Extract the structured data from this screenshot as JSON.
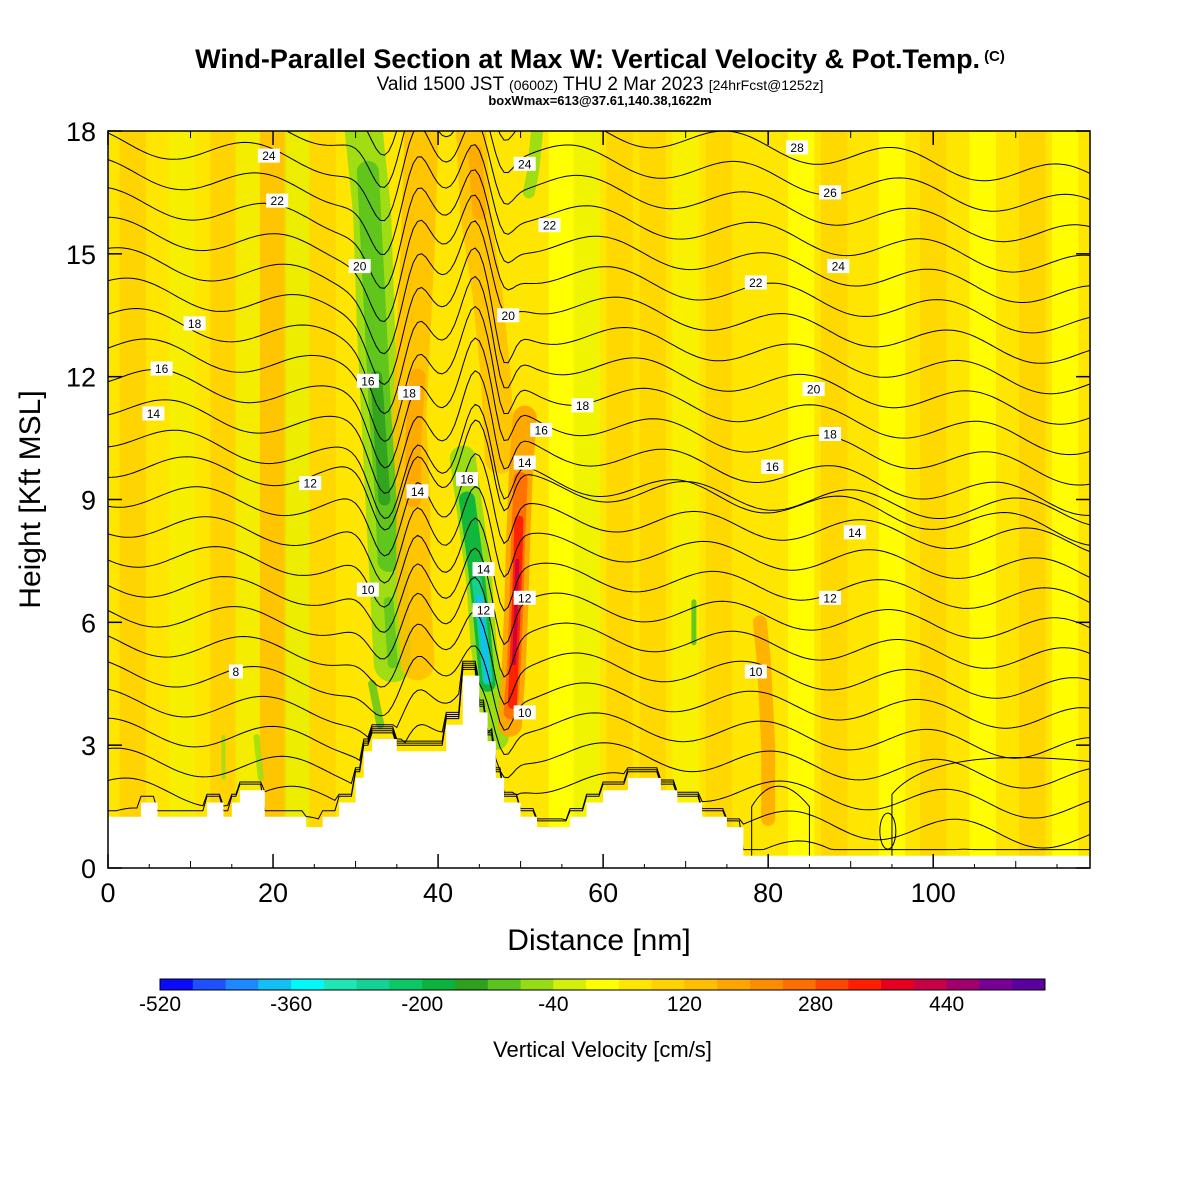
{
  "chart_data": {
    "type": "heatmap",
    "title": "Wind-Parallel Section at Max W: Vertical Velocity & Pot.Temp.",
    "title_mark": "(C)",
    "subtitle_main": "Valid 1500 JST",
    "subtitle_utc": "(0600Z)",
    "subtitle_date": "THU 2 Mar 2023",
    "subtitle_fcst": "[24hrFcst@1252z]",
    "subtitle2": "boxWmax=613@37.61,140.38,1622m",
    "xlabel": "Distance [nm]",
    "ylabel": "Height [Kft MSL]",
    "xlim": [
      0,
      119
    ],
    "ylim": [
      0,
      18
    ],
    "xticks": [
      "0",
      "20",
      "40",
      "60",
      "80",
      "100"
    ],
    "yticks": [
      "0",
      "3",
      "6",
      "9",
      "12",
      "15",
      "18"
    ],
    "colorbar": {
      "label": "Vertical Velocity [cm/s]",
      "tick_labels": [
        "-520",
        "-360",
        "-200",
        "-40",
        "120",
        "280",
        "440"
      ],
      "colors": [
        "#0a0aff",
        "#1e50ff",
        "#1e88ff",
        "#12c0f5",
        "#00fafa",
        "#1ee6b4",
        "#14d296",
        "#0ac864",
        "#0ab43c",
        "#2da01e",
        "#5ac31e",
        "#96dc14",
        "#d2f00a",
        "#ffff00",
        "#ffe600",
        "#ffd200",
        "#ffbe00",
        "#ffa500",
        "#ff8c00",
        "#ff6e00",
        "#ff4600",
        "#ff1e00",
        "#e6001e",
        "#c80046",
        "#a0006e",
        "#780096",
        "#5a00a0"
      ]
    },
    "terrain_kft": [
      [
        0,
        1.25
      ],
      [
        4,
        1.25
      ],
      [
        4,
        1.6
      ],
      [
        6,
        1.6
      ],
      [
        6,
        1.25
      ],
      [
        12,
        1.25
      ],
      [
        12,
        1.6
      ],
      [
        14,
        1.6
      ],
      [
        14,
        1.25
      ],
      [
        15,
        1.25
      ],
      [
        15,
        1.6
      ],
      [
        16,
        1.6
      ],
      [
        16,
        1.9
      ],
      [
        19,
        1.9
      ],
      [
        19,
        1.25
      ],
      [
        24,
        1.25
      ],
      [
        24,
        1.0
      ],
      [
        26,
        1.0
      ],
      [
        26,
        1.25
      ],
      [
        28,
        1.25
      ],
      [
        28,
        1.6
      ],
      [
        30,
        1.6
      ],
      [
        30,
        2.2
      ],
      [
        31,
        2.2
      ],
      [
        31,
        2.85
      ],
      [
        32,
        2.85
      ],
      [
        32,
        3.15
      ],
      [
        35,
        3.15
      ],
      [
        35,
        2.85
      ],
      [
        41,
        2.85
      ],
      [
        41,
        3.5
      ],
      [
        43,
        3.5
      ],
      [
        43,
        4.7
      ],
      [
        45,
        4.7
      ],
      [
        45,
        3.8
      ],
      [
        46,
        3.8
      ],
      [
        46,
        3.1
      ],
      [
        47,
        3.1
      ],
      [
        47,
        2.2
      ],
      [
        48,
        2.2
      ],
      [
        48,
        1.6
      ],
      [
        50,
        1.6
      ],
      [
        50,
        1.25
      ],
      [
        52,
        1.25
      ],
      [
        52,
        1.0
      ],
      [
        56,
        1.0
      ],
      [
        56,
        1.25
      ],
      [
        58,
        1.25
      ],
      [
        58,
        1.6
      ],
      [
        60,
        1.6
      ],
      [
        60,
        1.9
      ],
      [
        63,
        1.9
      ],
      [
        63,
        2.2
      ],
      [
        67,
        2.2
      ],
      [
        67,
        1.9
      ],
      [
        69,
        1.9
      ],
      [
        69,
        1.6
      ],
      [
        72,
        1.6
      ],
      [
        72,
        1.25
      ],
      [
        75,
        1.25
      ],
      [
        75,
        1.0
      ],
      [
        77,
        1.0
      ],
      [
        77,
        0.3
      ],
      [
        119,
        0.3
      ]
    ],
    "w_features": [
      {
        "x": 33,
        "y": 9.0,
        "w": -220,
        "label": "downdraft"
      },
      {
        "x": 45.5,
        "y": 5.5,
        "w": -420,
        "label": "downdraft"
      },
      {
        "x": 49.5,
        "y": 7.0,
        "w": 440,
        "label": "updraft"
      },
      {
        "x": 37,
        "y": 10.0,
        "w": 120
      },
      {
        "x": 20,
        "y": 11.0,
        "w": 80
      },
      {
        "x": 80,
        "y": 3.0,
        "w": 100
      }
    ],
    "theta_contour_labels": [
      {
        "text": "24",
        "x": 19.5,
        "y": 17.4
      },
      {
        "text": "22",
        "x": 20.5,
        "y": 16.3
      },
      {
        "text": "24",
        "x": 50.5,
        "y": 17.2
      },
      {
        "text": "22",
        "x": 53.5,
        "y": 15.7
      },
      {
        "text": "28",
        "x": 83.5,
        "y": 17.6
      },
      {
        "text": "26",
        "x": 87.5,
        "y": 16.5
      },
      {
        "text": "24",
        "x": 88.5,
        "y": 14.7
      },
      {
        "text": "22",
        "x": 78.5,
        "y": 14.3
      },
      {
        "text": "20",
        "x": 30.5,
        "y": 14.7
      },
      {
        "text": "20",
        "x": 48.5,
        "y": 13.5
      },
      {
        "text": "20",
        "x": 85.5,
        "y": 11.7
      },
      {
        "text": "18",
        "x": 10.5,
        "y": 13.3
      },
      {
        "text": "18",
        "x": 36.5,
        "y": 11.6
      },
      {
        "text": "18",
        "x": 57.5,
        "y": 11.3
      },
      {
        "text": "18",
        "x": 87.5,
        "y": 10.6
      },
      {
        "text": "16",
        "x": 6.5,
        "y": 12.2
      },
      {
        "text": "16",
        "x": 31.5,
        "y": 11.9
      },
      {
        "text": "16",
        "x": 43.5,
        "y": 9.5
      },
      {
        "text": "16",
        "x": 52.5,
        "y": 10.7
      },
      {
        "text": "16",
        "x": 80.5,
        "y": 9.8
      },
      {
        "text": "14",
        "x": 5.5,
        "y": 11.1
      },
      {
        "text": "14",
        "x": 37.5,
        "y": 9.2
      },
      {
        "text": "14",
        "x": 50.5,
        "y": 9.9
      },
      {
        "text": "14",
        "x": 45.5,
        "y": 7.3
      },
      {
        "text": "14",
        "x": 90.5,
        "y": 8.2
      },
      {
        "text": "12",
        "x": 24.5,
        "y": 9.4
      },
      {
        "text": "12",
        "x": 45.5,
        "y": 6.3
      },
      {
        "text": "12",
        "x": 50.5,
        "y": 6.6
      },
      {
        "text": "12",
        "x": 87.5,
        "y": 6.6
      },
      {
        "text": "10",
        "x": 31.5,
        "y": 6.8
      },
      {
        "text": "10",
        "x": 50.5,
        "y": 3.8
      },
      {
        "text": "10",
        "x": 78.5,
        "y": 4.8
      },
      {
        "text": "8",
        "x": 15.5,
        "y": 4.8
      }
    ]
  }
}
